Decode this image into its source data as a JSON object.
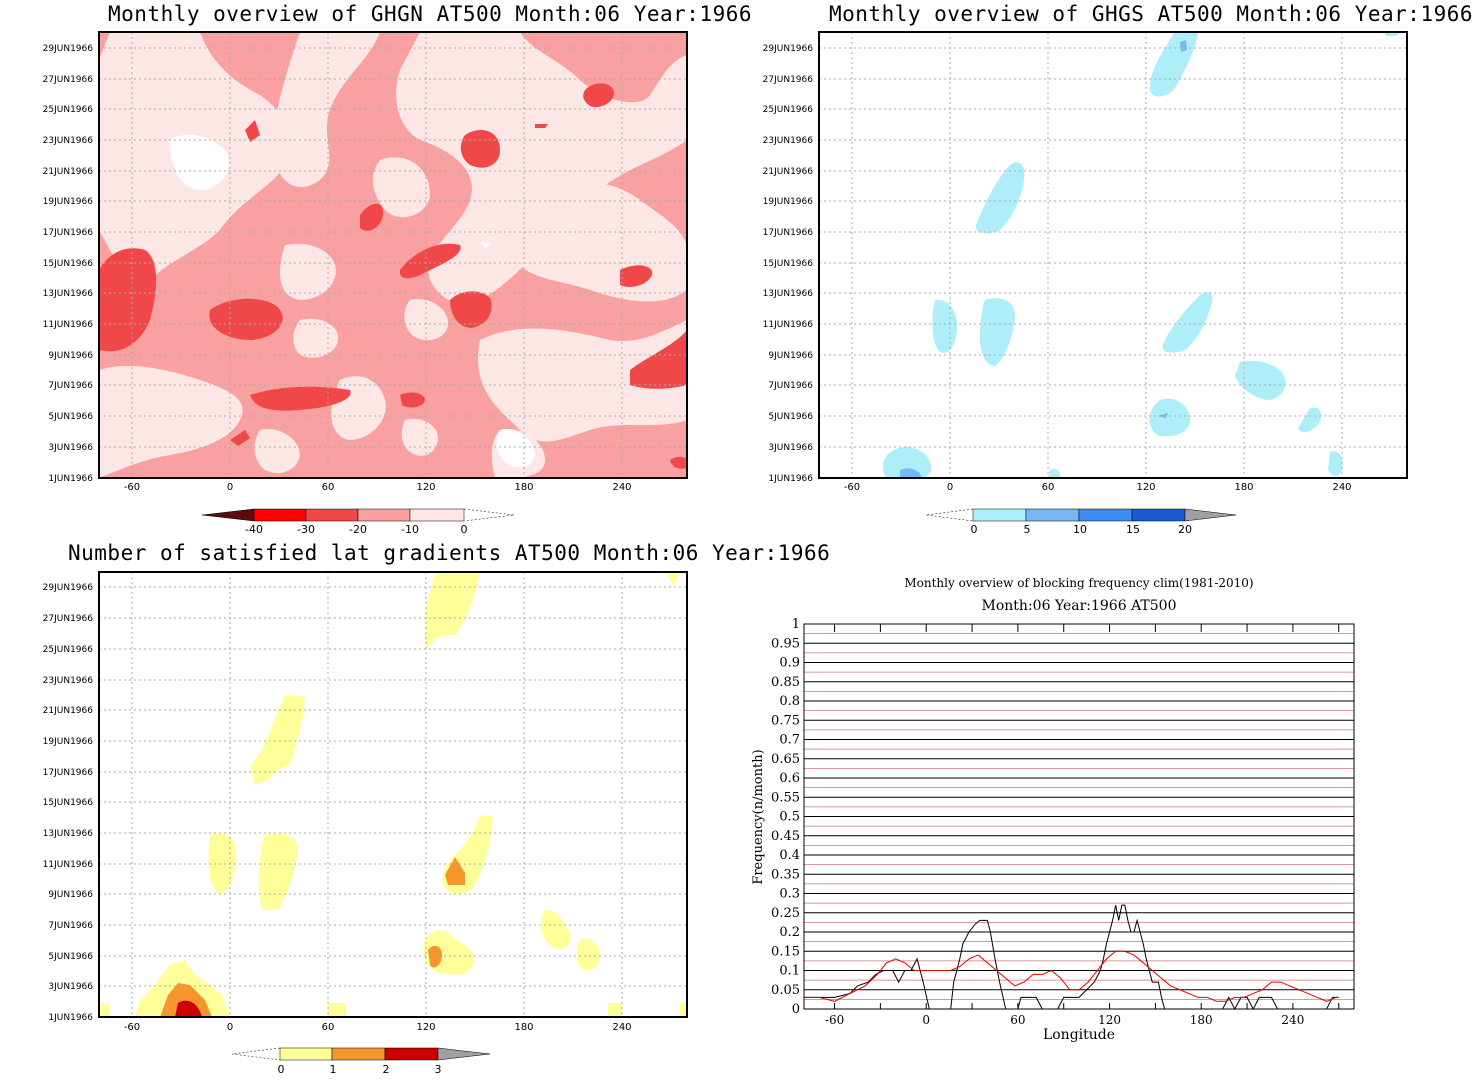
{
  "panels": {
    "ghgn": {
      "title": "Monthly overview of GHGN AT500 Month:06 Year:1966",
      "yticks": [
        "29JUN1966",
        "27JUN1966",
        "25JUN1966",
        "23JUN1966",
        "21JUN1966",
        "19JUN1966",
        "17JUN1966",
        "15JUN1966",
        "13JUN1966",
        "11JUN1966",
        "9JUN1966",
        "7JUN1966",
        "5JUN1966",
        "3JUN1966",
        "1JUN1966"
      ],
      "xticks": [
        "-60",
        "0",
        "60",
        "120",
        "180",
        "240"
      ],
      "colorbar": {
        "labels": [
          "-40",
          "-30",
          "-20",
          "-10",
          "0"
        ],
        "colors": [
          "#5a0c0c",
          "#ff0000",
          "#f04848",
          "#f9a0a0",
          "#fde6e6"
        ]
      }
    },
    "ghgs": {
      "title": "Monthly overview of GHGS AT500 Month:06 Year:1966",
      "yticks": [
        "29JUN1966",
        "27JUN1966",
        "25JUN1966",
        "23JUN1966",
        "21JUN1966",
        "19JUN1966",
        "17JUN1966",
        "15JUN1966",
        "13JUN1966",
        "11JUN1966",
        "9JUN1966",
        "7JUN1966",
        "5JUN1966",
        "3JUN1966",
        "1JUN1966"
      ],
      "xticks": [
        "-60",
        "0",
        "60",
        "120",
        "180",
        "240"
      ],
      "colorbar": {
        "labels": [
          "0",
          "5",
          "10",
          "15",
          "20"
        ],
        "colors": [
          "#aeeef8",
          "#78b8f0",
          "#3c8cf0",
          "#1e5ad2",
          "#a0a0a0"
        ]
      }
    },
    "lat": {
      "title": "Number of satisfied lat gradients AT500 Month:06 Year:1966",
      "yticks": [
        "29JUN1966",
        "27JUN1966",
        "25JUN1966",
        "23JUN1966",
        "21JUN1966",
        "19JUN1966",
        "17JUN1966",
        "15JUN1966",
        "13JUN1966",
        "11JUN1966",
        "9JUN1966",
        "7JUN1966",
        "5JUN1966",
        "3JUN1966",
        "1JUN1966"
      ],
      "xticks": [
        "-60",
        "0",
        "60",
        "120",
        "180",
        "240"
      ],
      "colorbar": {
        "labels": [
          "0",
          "1",
          "2",
          "3"
        ],
        "colors": [
          "#ffff9a",
          "#f5962d",
          "#cd0000",
          "#a0a0a0"
        ]
      }
    },
    "freq": {
      "title": "Monthly overview of blocking frequency clim(1981-2010)",
      "subtitle": "Month:06 Year:1966  AT500",
      "xlabel": "Longitude",
      "ylabel": "Frequency(n/month)"
    }
  },
  "chart_data": [
    {
      "type": "heatmap",
      "title": "Monthly overview of GHGN AT500 Month:06 Year:1966",
      "xlim": [
        -90,
        270
      ],
      "ylim": [
        "1JUN1966",
        "30JUN1966"
      ],
      "levels": [
        -40,
        -30,
        -20,
        -10,
        0
      ],
      "grid": true
    },
    {
      "type": "heatmap",
      "title": "Monthly overview of GHGS AT500 Month:06 Year:1966",
      "xlim": [
        -90,
        270
      ],
      "ylim": [
        "1JUN1966",
        "30JUN1966"
      ],
      "levels": [
        0,
        5,
        10,
        15,
        20
      ],
      "grid": true
    },
    {
      "type": "heatmap",
      "title": "Number of satisfied lat gradients AT500 Month:06 Year:1966",
      "xlim": [
        -90,
        270
      ],
      "ylim": [
        "1JUN1966",
        "30JUN1966"
      ],
      "levels": [
        0,
        1,
        2,
        3
      ],
      "grid": true
    },
    {
      "type": "line",
      "title": "Monthly overview of blocking frequency clim(1981-2010)",
      "subtitle": "Month:06 Year:1966  AT500",
      "xlabel": "Longitude",
      "ylabel": "Frequency(n/month)",
      "xlim": [
        -80,
        280
      ],
      "ylim": [
        0,
        1
      ],
      "xticks": [
        "-60",
        "0",
        "60",
        "120",
        "180",
        "240"
      ],
      "yticks": [
        "0",
        "0.05",
        "0.1",
        "0.15",
        "0.2",
        "0.25",
        "0.3",
        "0.35",
        "0.4",
        "0.45",
        "0.5",
        "0.55",
        "0.6",
        "0.65",
        "0.7",
        "0.75",
        "0.8",
        "0.85",
        "0.9",
        "0.95",
        "1"
      ],
      "series": [
        {
          "color": "#000000",
          "x": [
            -80,
            -60,
            -50,
            -45,
            -38,
            -33,
            -28,
            -22,
            -18,
            -14,
            -10,
            -6,
            -2,
            2,
            6,
            10,
            14,
            16,
            18,
            20,
            22,
            24,
            28,
            32,
            35,
            38,
            40,
            42,
            45,
            48,
            52,
            56,
            60,
            62,
            66,
            72,
            76,
            80,
            86,
            90,
            100,
            110,
            114,
            116,
            118,
            120,
            122,
            124,
            126,
            128,
            130,
            132,
            134,
            136,
            138,
            140,
            142,
            144,
            146,
            148,
            150,
            152,
            154,
            156,
            158,
            160,
            162,
            166,
            170,
            176,
            182,
            186,
            190,
            194,
            198,
            202,
            206,
            210,
            214,
            218,
            222,
            226,
            230,
            234,
            238,
            242,
            246,
            250,
            254,
            258,
            262,
            266,
            270
          ],
          "y": [
            0.03,
            0.03,
            0.04,
            0.06,
            0.07,
            0.09,
            0.1,
            0.1,
            0.07,
            0.1,
            0.1,
            0.13,
            0.07,
            0.0,
            0.0,
            0.0,
            0.0,
            0.0,
            0.07,
            0.1,
            0.13,
            0.17,
            0.2,
            0.22,
            0.23,
            0.23,
            0.23,
            0.2,
            0.13,
            0.07,
            0.0,
            0.0,
            0.0,
            0.03,
            0.03,
            0.03,
            0.0,
            0.0,
            0.0,
            0.03,
            0.03,
            0.07,
            0.1,
            0.13,
            0.17,
            0.2,
            0.23,
            0.27,
            0.23,
            0.27,
            0.27,
            0.23,
            0.2,
            0.2,
            0.23,
            0.2,
            0.17,
            0.13,
            0.1,
            0.07,
            0.07,
            0.07,
            0.03,
            0.0,
            0.0,
            0.0,
            0.0,
            0.0,
            0.0,
            0.0,
            0.0,
            0.0,
            0.0,
            0.0,
            0.03,
            0.0,
            0.03,
            0.03,
            0.0,
            0.03,
            0.03,
            0.03,
            0.0,
            0.0,
            0.0,
            0.0,
            0.0,
            0.0,
            0.0,
            0.0,
            0.0,
            0.03,
            0.03
          ]
        },
        {
          "color": "#e00000",
          "x": [
            -80,
            -70,
            -60,
            -50,
            -40,
            -32,
            -26,
            -20,
            -14,
            -8,
            -2,
            4,
            10,
            16,
            22,
            28,
            34,
            40,
            46,
            52,
            58,
            64,
            70,
            76,
            82,
            88,
            94,
            100,
            106,
            112,
            118,
            124,
            130,
            136,
            142,
            148,
            154,
            160,
            166,
            172,
            178,
            184,
            190,
            196,
            202,
            208,
            214,
            220,
            226,
            232,
            238,
            244,
            250,
            256,
            262,
            268,
            270
          ],
          "y": [
            0.03,
            0.03,
            0.02,
            0.04,
            0.06,
            0.09,
            0.12,
            0.13,
            0.12,
            0.1,
            0.1,
            0.1,
            0.1,
            0.1,
            0.11,
            0.13,
            0.14,
            0.12,
            0.1,
            0.08,
            0.06,
            0.07,
            0.09,
            0.09,
            0.1,
            0.08,
            0.05,
            0.05,
            0.07,
            0.1,
            0.13,
            0.15,
            0.15,
            0.14,
            0.12,
            0.1,
            0.08,
            0.06,
            0.05,
            0.04,
            0.03,
            0.03,
            0.02,
            0.02,
            0.03,
            0.03,
            0.04,
            0.05,
            0.07,
            0.07,
            0.06,
            0.05,
            0.04,
            0.03,
            0.02,
            0.03,
            0.03
          ]
        }
      ]
    }
  ]
}
